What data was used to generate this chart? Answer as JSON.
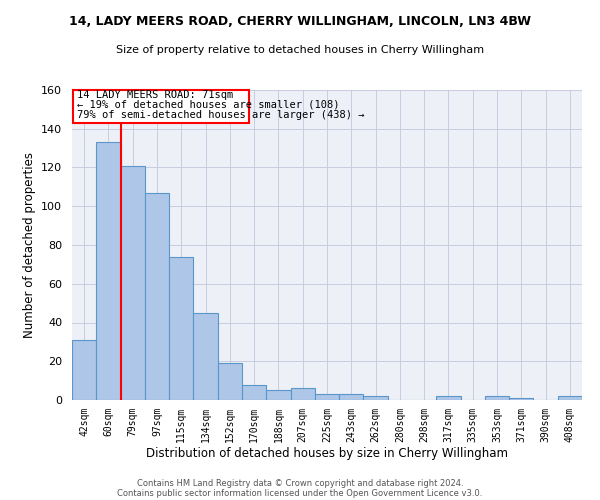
{
  "title1": "14, LADY MEERS ROAD, CHERRY WILLINGHAM, LINCOLN, LN3 4BW",
  "title2": "Size of property relative to detached houses in Cherry Willingham",
  "xlabel": "Distribution of detached houses by size in Cherry Willingham",
  "ylabel": "Number of detached properties",
  "footer1": "Contains HM Land Registry data © Crown copyright and database right 2024.",
  "footer2": "Contains public sector information licensed under the Open Government Licence v3.0.",
  "categories": [
    "42sqm",
    "60sqm",
    "79sqm",
    "97sqm",
    "115sqm",
    "134sqm",
    "152sqm",
    "170sqm",
    "188sqm",
    "207sqm",
    "225sqm",
    "243sqm",
    "262sqm",
    "280sqm",
    "298sqm",
    "317sqm",
    "335sqm",
    "353sqm",
    "371sqm",
    "390sqm",
    "408sqm"
  ],
  "values": [
    31,
    133,
    121,
    107,
    74,
    45,
    19,
    8,
    5,
    6,
    3,
    3,
    2,
    0,
    0,
    2,
    0,
    2,
    1,
    0,
    2
  ],
  "bar_color": "#aec6e8",
  "bar_edge_color": "#5a96c8",
  "grid_color": "#c8cce0",
  "background_color": "#eef0f8",
  "annotation_line1": "14 LADY MEERS ROAD: 71sqm",
  "annotation_line2": "← 19% of detached houses are smaller (108)",
  "annotation_line3": "79% of semi-detached houses are larger (438) →",
  "property_line_x": 1.5,
  "ylim": [
    0,
    160
  ],
  "yticks": [
    0,
    20,
    40,
    60,
    80,
    100,
    120,
    140,
    160
  ]
}
